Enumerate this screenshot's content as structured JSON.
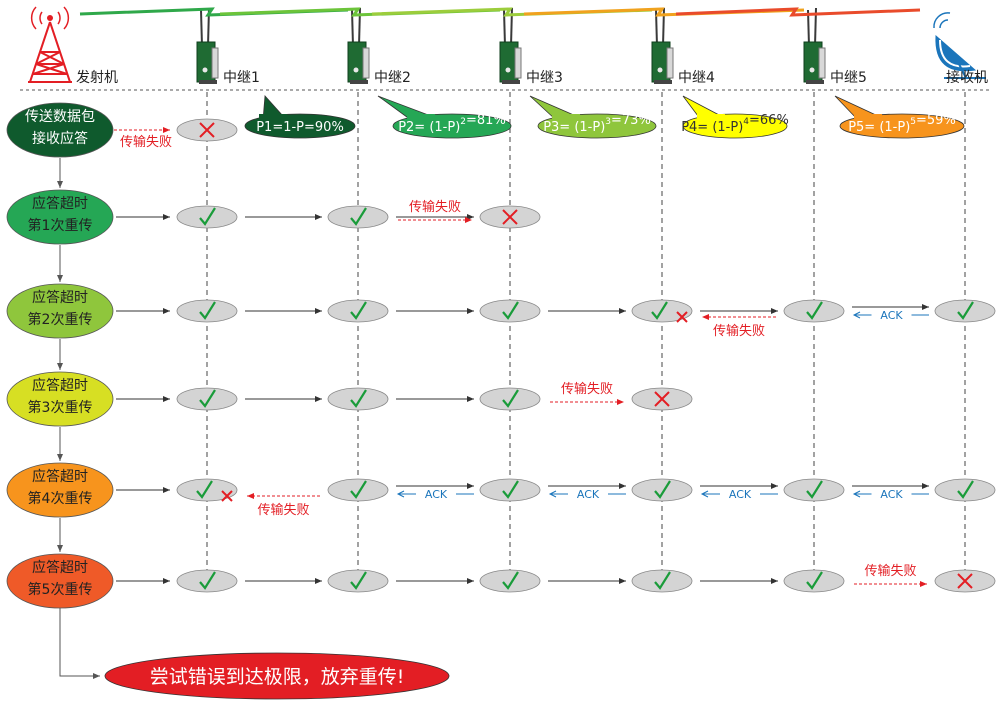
{
  "header": {
    "transmitter_label": "发射机",
    "receiver_label": "接收机",
    "relays": [
      "中继1",
      "中继2",
      "中继3",
      "中继4",
      "中继5"
    ],
    "link_colors": [
      "#2fa84a",
      "#6cc43a",
      "#9ccd3c",
      "#f0a21e",
      "#e94b2b"
    ]
  },
  "callouts": [
    {
      "parts": [
        {
          "t": "P1=1-P=90%"
        }
      ],
      "fill": "#0f5a2d",
      "text_color": "#ffffff"
    },
    {
      "parts": [
        {
          "t": "P2=  (1-P)"
        },
        {
          "t": "2",
          "sup": true
        },
        {
          "t": "=81%"
        }
      ],
      "fill": "#25a755",
      "text_color": "#ffffff"
    },
    {
      "parts": [
        {
          "t": "P3=  (1-P)"
        },
        {
          "t": "3",
          "sup": true
        },
        {
          "t": "=73%"
        }
      ],
      "fill": "#8fc63c",
      "text_color": "#ffffff"
    },
    {
      "parts": [
        {
          "t": "P4=  (1-P)"
        },
        {
          "t": "4",
          "sup": true
        },
        {
          "t": "=66%"
        }
      ],
      "fill": "#ffff00",
      "text_color": "#333333"
    },
    {
      "parts": [
        {
          "t": "P5=  (1-P)"
        },
        {
          "t": "5",
          "sup": true
        },
        {
          "t": "=59%"
        }
      ],
      "fill": "#f7941d",
      "text_color": "#ffffff"
    }
  ],
  "rows": [
    {
      "label": [
        "传送数据包",
        "接收应答"
      ],
      "fill": "#0f5a2d",
      "nodes": [
        "x",
        null,
        null,
        null,
        null,
        null
      ],
      "links": [],
      "ack": [],
      "fail": {
        "after": 0,
        "label": "传输失败",
        "position": "before"
      }
    },
    {
      "label": [
        "应答超时",
        "第1次重传"
      ],
      "fill": "#25a755",
      "nodes": [
        "ok",
        "ok",
        "x",
        null,
        null,
        null
      ],
      "links": [
        0,
        1
      ],
      "ack": [],
      "fail": {
        "after": 1,
        "label": "传输失败",
        "position": "above"
      }
    },
    {
      "label": [
        "应答超时",
        "第2次重传"
      ],
      "fill": "#8fc63c",
      "nodes": [
        "ok",
        "ok",
        "ok",
        "okx",
        "ok",
        "ok"
      ],
      "links": [
        0,
        1,
        2,
        3,
        4
      ],
      "ack": [
        4
      ],
      "ack_label": "ACK",
      "fail": {
        "after": 3,
        "label": "传输失败",
        "position": "below"
      }
    },
    {
      "label": [
        "应答超时",
        "第3次重传"
      ],
      "fill": "#d7df23",
      "nodes": [
        "ok",
        "ok",
        "ok",
        "x",
        null,
        null
      ],
      "links": [
        0,
        1
      ],
      "ack": [],
      "fail": {
        "after": 2,
        "label": "传输失败",
        "position": "above"
      }
    },
    {
      "label": [
        "应答超时",
        "第4次重传"
      ],
      "fill": "#f7941d",
      "nodes": [
        "okx",
        "ok",
        "ok",
        "ok",
        "ok",
        "ok"
      ],
      "links": [
        1,
        2,
        3,
        4
      ],
      "ack": [
        1,
        2,
        3,
        4
      ],
      "ack_label": "ACK",
      "fail": {
        "after": 0,
        "label": "传输失败",
        "position": "below"
      }
    },
    {
      "label": [
        "应答超时",
        "第5次重传"
      ],
      "fill": "#ef5a28",
      "nodes": [
        "ok",
        "ok",
        "ok",
        "ok",
        "ok",
        "x"
      ],
      "links": [
        0,
        1,
        2,
        3
      ],
      "ack": [],
      "fail": {
        "after": 4,
        "label": "传输失败",
        "position": "above"
      }
    }
  ],
  "final_message": "尝试错误到达极限，放弃重传!",
  "final_fill": "#e31e24",
  "check_color": "#1a9c3a",
  "cross_color": "#e31e24"
}
